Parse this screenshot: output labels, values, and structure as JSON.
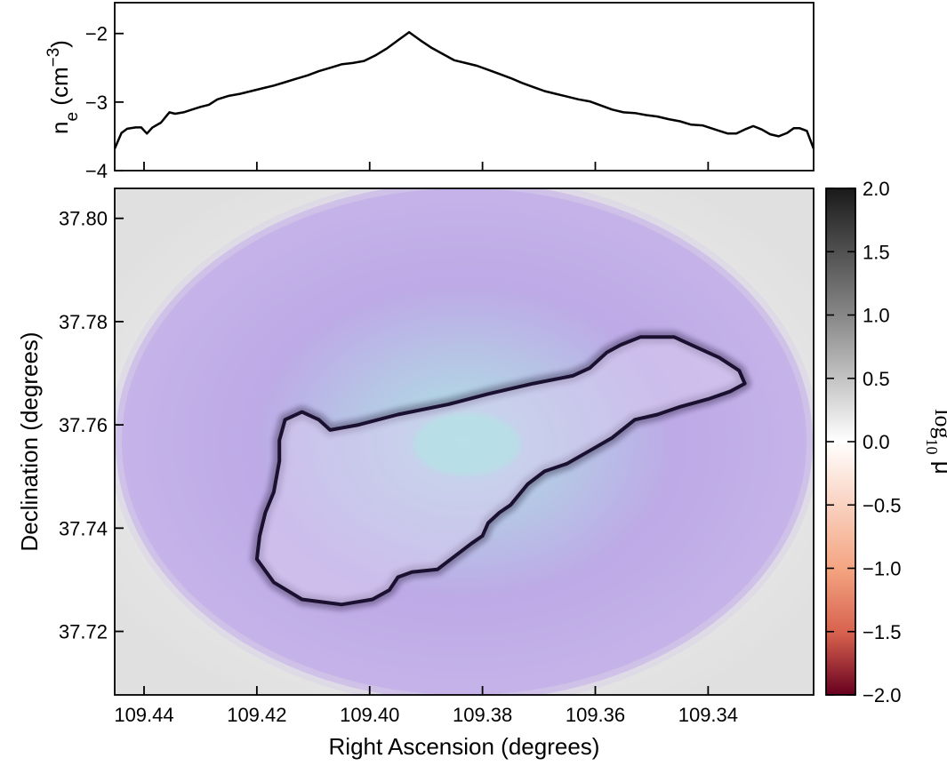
{
  "chart_data": [
    {
      "panel": "top",
      "type": "line",
      "ylabel": {
        "base": "n",
        "sub": "e",
        "unit_open": " (cm",
        "sup": "−3",
        "unit_close": ")"
      },
      "xlim": [
        109.4452,
        109.3213
      ],
      "ylim": [
        -4,
        -1.55
      ],
      "yticks": [
        {
          "v": -2,
          "label": "−2"
        },
        {
          "v": -3,
          "label": "−3"
        },
        {
          "v": -4,
          "label": "−4"
        }
      ],
      "xticks": [
        109.44,
        109.42,
        109.4,
        109.38,
        109.36,
        109.34
      ],
      "series": [
        {
          "x": [
            109.4452,
            109.444,
            109.443,
            109.4415,
            109.4405,
            109.4395,
            109.4385,
            109.437,
            109.4355,
            109.4345,
            109.433,
            109.4315,
            109.43,
            109.4285,
            109.427,
            109.425,
            109.423,
            109.421,
            109.419,
            109.417,
            109.415,
            109.413,
            109.411,
            109.409,
            109.407,
            109.405,
            109.403,
            109.401,
            109.399,
            109.397,
            109.395,
            109.393,
            109.391,
            109.389,
            109.387,
            109.385,
            109.383,
            109.381,
            109.379,
            109.377,
            109.375,
            109.373,
            109.371,
            109.369,
            109.367,
            109.365,
            109.363,
            109.361,
            109.359,
            109.357,
            109.355,
            109.353,
            109.351,
            109.349,
            109.347,
            109.345,
            109.343,
            109.341,
            109.3395,
            109.338,
            109.3365,
            109.335,
            109.3335,
            109.332,
            109.3305,
            109.329,
            109.3275,
            109.326,
            109.3248,
            109.3238,
            109.3225,
            109.3213
          ],
          "y": [
            -3.68,
            -3.45,
            -3.39,
            -3.37,
            -3.37,
            -3.46,
            -3.37,
            -3.3,
            -3.15,
            -3.17,
            -3.15,
            -3.11,
            -3.07,
            -3.04,
            -2.96,
            -2.91,
            -2.88,
            -2.84,
            -2.8,
            -2.76,
            -2.71,
            -2.66,
            -2.61,
            -2.55,
            -2.5,
            -2.45,
            -2.43,
            -2.4,
            -2.32,
            -2.22,
            -2.1,
            -1.98,
            -2.1,
            -2.21,
            -2.3,
            -2.39,
            -2.43,
            -2.47,
            -2.53,
            -2.59,
            -2.65,
            -2.72,
            -2.78,
            -2.84,
            -2.88,
            -2.92,
            -2.96,
            -2.99,
            -3.05,
            -3.11,
            -3.15,
            -3.16,
            -3.19,
            -3.21,
            -3.25,
            -3.28,
            -3.33,
            -3.34,
            -3.38,
            -3.42,
            -3.46,
            -3.46,
            -3.4,
            -3.35,
            -3.4,
            -3.47,
            -3.5,
            -3.45,
            -3.38,
            -3.38,
            -3.42,
            -3.68
          ]
        }
      ]
    },
    {
      "panel": "main",
      "type": "heatmap",
      "xlabel": "Right Ascension (degrees)",
      "ylabel": "Declination (degrees)",
      "xlim": [
        109.4452,
        109.3213
      ],
      "ylim": [
        37.7077,
        37.8058
      ],
      "xticks": [
        109.44,
        109.42,
        109.4,
        109.38,
        109.36,
        109.34
      ],
      "xtick_labels": [
        "109.44",
        "109.42",
        "109.40",
        "109.38",
        "109.36",
        "109.34"
      ],
      "yticks": [
        37.72,
        37.74,
        37.76,
        37.78,
        37.8
      ],
      "ytick_labels": [
        "37.72",
        "37.74",
        "37.76",
        "37.78",
        "37.80"
      ],
      "colorbar": {
        "label": "log10 μ",
        "label_base": "log",
        "label_sub": "10",
        "label_symbol": " μ",
        "range": [
          -2.0,
          2.0
        ],
        "ticks": [
          2.0,
          1.5,
          1.0,
          0.5,
          0.0,
          -0.5,
          -1.0,
          -1.5,
          -2.0
        ],
        "tick_labels": [
          "2.0",
          "1.5",
          "1.0",
          "0.5",
          "0.0",
          "−0.5",
          "−1.0",
          "−1.5",
          "−2.0"
        ],
        "colors": {
          "low": "#67001f",
          "mid": "#ffffff",
          "high": "#1a1a1a"
        }
      },
      "background_colors": {
        "field": "#b9a4e6",
        "center": "#a8e2e2",
        "outer": "#e0e0e0",
        "caustic": "#1a1030"
      },
      "critical_curve_outline": [
        [
          109.4195,
          37.7385
        ],
        [
          109.42,
          37.734
        ],
        [
          109.417,
          37.7295
        ],
        [
          109.412,
          37.7262
        ],
        [
          109.405,
          37.7252
        ],
        [
          109.3995,
          37.7262
        ],
        [
          109.3965,
          37.728
        ],
        [
          109.395,
          37.7305
        ],
        [
          109.3925,
          37.7315
        ],
        [
          109.388,
          37.732
        ],
        [
          109.385,
          37.7345
        ],
        [
          109.382,
          37.737
        ],
        [
          109.38,
          37.7385
        ],
        [
          109.379,
          37.741
        ],
        [
          109.377,
          37.743
        ],
        [
          109.375,
          37.7445
        ],
        [
          109.372,
          37.7485
        ],
        [
          109.369,
          37.751
        ],
        [
          109.365,
          37.7525
        ],
        [
          109.361,
          37.755
        ],
        [
          109.357,
          37.7575
        ],
        [
          109.353,
          37.761
        ],
        [
          109.349,
          37.762
        ],
        [
          109.345,
          37.7635
        ],
        [
          109.34,
          37.765
        ],
        [
          109.336,
          37.7665
        ],
        [
          109.3335,
          37.768
        ],
        [
          109.3345,
          37.7705
        ],
        [
          109.338,
          37.773
        ],
        [
          109.343,
          37.7755
        ],
        [
          109.346,
          37.777
        ],
        [
          109.349,
          37.777
        ],
        [
          109.352,
          37.777
        ],
        [
          109.3555,
          37.7755
        ],
        [
          109.358,
          37.774
        ],
        [
          109.361,
          37.771
        ],
        [
          109.364,
          37.7695
        ],
        [
          109.371,
          37.768
        ],
        [
          109.379,
          37.766
        ],
        [
          109.386,
          37.764
        ],
        [
          109.395,
          37.762
        ],
        [
          109.402,
          37.76
        ],
        [
          109.407,
          37.759
        ],
        [
          109.409,
          37.761
        ],
        [
          109.412,
          37.7625
        ],
        [
          109.415,
          37.761
        ],
        [
          109.416,
          37.757
        ],
        [
          109.416,
          37.753
        ],
        [
          109.417,
          37.747
        ],
        [
          109.4185,
          37.743
        ]
      ]
    }
  ]
}
